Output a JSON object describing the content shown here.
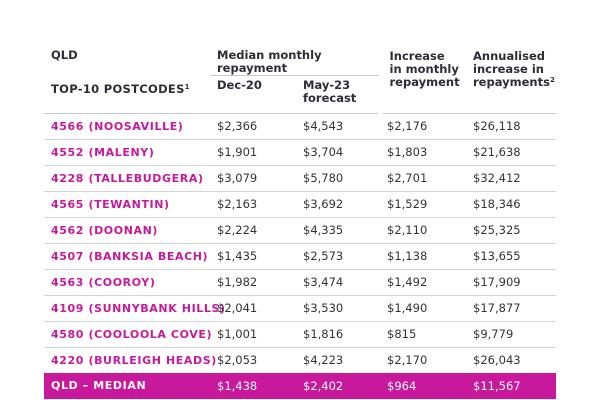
{
  "header": {
    "region": "QLD",
    "top10_label": "TOP-10 POSTCODES",
    "top10_sup": "1",
    "group_label": "Median monthly repayment",
    "col_dec20": "Dec-20",
    "col_may23_line1": "May-23",
    "col_may23_line2": "forecast",
    "col_increase_line1": "Increase",
    "col_increase_line2": "in monthly",
    "col_increase_line3": "repayment",
    "col_annual_line1": "Annualised",
    "col_annual_line2": "increase in",
    "col_annual_line3": "repayments",
    "col_annual_sup": "2"
  },
  "rows": [
    {
      "postcode": "4566 (NOOSAVILLE)",
      "dec20": "$2,366",
      "may23": "$4,543",
      "increase": "$2,176",
      "annualised": "$26,118"
    },
    {
      "postcode": "4552 (MALENY)",
      "dec20": "$1,901",
      "may23": "$3,704",
      "increase": "$1,803",
      "annualised": "$21,638"
    },
    {
      "postcode": "4228 (TALLEBUDGERA)",
      "dec20": "$3,079",
      "may23": "$5,780",
      "increase": "$2,701",
      "annualised": "$32,412"
    },
    {
      "postcode": "4565 (TEWANTIN)",
      "dec20": "$2,163",
      "may23": "$3,692",
      "increase": "$1,529",
      "annualised": "$18,346"
    },
    {
      "postcode": "4562 (DOONAN)",
      "dec20": "$2,224",
      "may23": "$4,335",
      "increase": "$2,110",
      "annualised": "$25,325"
    },
    {
      "postcode": "4507 (BANKSIA BEACH)",
      "dec20": "$1,435",
      "may23": "$2,573",
      "increase": "$1,138",
      "annualised": "$13,655"
    },
    {
      "postcode": "4563 (COOROY)",
      "dec20": "$1,982",
      "may23": "$3,474",
      "increase": "$1,492",
      "annualised": "$17,909"
    },
    {
      "postcode": "4109 (SUNNYBANK HILLS)",
      "dec20": "$2,041",
      "may23": "$3,530",
      "increase": "$1,490",
      "annualised": "$17,877"
    },
    {
      "postcode": "4580 (COOLOOLA COVE)",
      "dec20": "$1,001",
      "may23": "$1,816",
      "increase": "$815",
      "annualised": "$9,779"
    },
    {
      "postcode": "4220 (BURLEIGH HEADS)",
      "dec20": "$2,053",
      "may23": "$4,223",
      "increase": "$2,170",
      "annualised": "$26,043"
    }
  ],
  "median": {
    "postcode": "QLD – MEDIAN",
    "dec20": "$1,438",
    "may23": "$2,402",
    "increase": "$964",
    "annualised": "$11,567"
  },
  "colors": {
    "accent": "#c8189c",
    "header_text": "#2d2d3a",
    "body_text": "#333333"
  }
}
